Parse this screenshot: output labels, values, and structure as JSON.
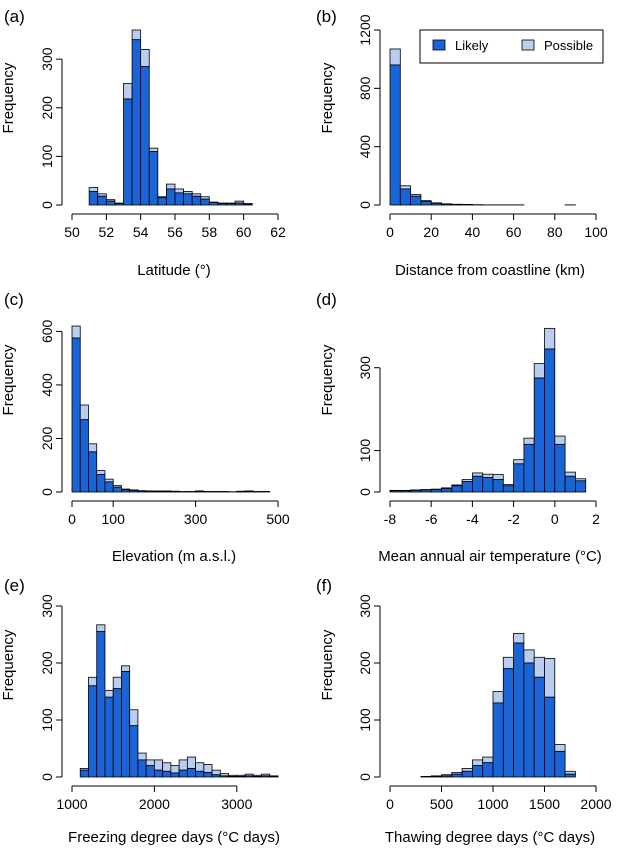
{
  "legend": {
    "labels": [
      "Likely",
      "Possible"
    ],
    "placement": "top-right of panel (b)"
  },
  "colors": {
    "likely": "#1a64d6",
    "possible": "#b9cdee",
    "outline": "#000000"
  },
  "chart_data": [
    {
      "panel": "(a)",
      "type": "bar",
      "stacked": true,
      "xlabel": "Latitude (°)",
      "ylabel": "Frequency",
      "xlim": [
        50,
        62
      ],
      "ylim": [
        0,
        360
      ],
      "xticks": [
        50,
        52,
        54,
        56,
        58,
        60,
        62
      ],
      "yticks": [
        0,
        100,
        200,
        300
      ],
      "bin_width": 0.5,
      "x": [
        51,
        51.5,
        52,
        52.5,
        53,
        53.5,
        54,
        54.5,
        55,
        55.5,
        56,
        56.5,
        57,
        57.5,
        58,
        58.5,
        59,
        59.5,
        60
      ],
      "series": [
        {
          "name": "Likely",
          "values": [
            28,
            18,
            8,
            3,
            218,
            340,
            285,
            110,
            15,
            33,
            25,
            23,
            18,
            12,
            5,
            3,
            3,
            4,
            2
          ]
        },
        {
          "name": "Possible",
          "values": [
            8,
            5,
            3,
            1,
            32,
            20,
            35,
            7,
            2,
            10,
            8,
            5,
            5,
            5,
            1,
            1,
            1,
            4,
            1
          ]
        }
      ]
    },
    {
      "panel": "(b)",
      "type": "bar",
      "stacked": true,
      "xlabel": "Distance from coastline (km)",
      "ylabel": "Frequency",
      "xlim": [
        0,
        100
      ],
      "ylim": [
        0,
        1200
      ],
      "xticks": [
        0,
        20,
        40,
        60,
        80,
        100
      ],
      "yticks": [
        0,
        400,
        800,
        1200
      ],
      "bin_width": 5,
      "x": [
        0,
        5,
        10,
        15,
        20,
        25,
        30,
        35,
        40,
        45,
        50,
        55,
        60,
        65,
        70,
        75,
        80,
        85
      ],
      "series": [
        {
          "name": "Likely",
          "values": [
            960,
            110,
            60,
            25,
            12,
            6,
            4,
            3,
            2,
            1,
            1,
            1,
            1,
            0,
            0,
            0,
            0,
            1
          ]
        },
        {
          "name": "Possible",
          "values": [
            110,
            22,
            12,
            5,
            3,
            2,
            1,
            1,
            0,
            0,
            0,
            0,
            0,
            0,
            0,
            0,
            0,
            0
          ]
        }
      ]
    },
    {
      "panel": "(c)",
      "type": "bar",
      "stacked": true,
      "xlabel": "Elevation (m a.s.l.)",
      "ylabel": "Frequency",
      "xlim": [
        0,
        500
      ],
      "ylim": [
        0,
        650
      ],
      "xticks": [
        0,
        100,
        300,
        500
      ],
      "yticks": [
        0,
        200,
        400,
        600
      ],
      "bin_width": 20,
      "x": [
        0,
        20,
        40,
        60,
        80,
        100,
        120,
        140,
        160,
        180,
        200,
        220,
        240,
        260,
        280,
        300,
        320,
        340,
        360,
        380,
        400,
        420,
        440,
        460
      ],
      "series": [
        {
          "name": "Likely",
          "values": [
            575,
            270,
            150,
            65,
            38,
            18,
            8,
            6,
            4,
            3,
            3,
            3,
            2,
            2,
            2,
            3,
            2,
            2,
            2,
            1,
            2,
            3,
            2,
            2
          ]
        },
        {
          "name": "Possible",
          "values": [
            45,
            55,
            30,
            15,
            10,
            6,
            3,
            2,
            1,
            1,
            1,
            1,
            1,
            0,
            0,
            1,
            0,
            0,
            0,
            0,
            1,
            1,
            0,
            0
          ]
        }
      ]
    },
    {
      "panel": "(d)",
      "type": "bar",
      "stacked": true,
      "xlabel": "Mean annual air temperature (°C)",
      "ylabel": "Frequency",
      "xlim": [
        -8,
        2
      ],
      "ylim": [
        0,
        420
      ],
      "xticks": [
        -8,
        -6,
        -4,
        -2,
        0,
        2
      ],
      "yticks": [
        0,
        100,
        300
      ],
      "bin_width": 0.5,
      "x": [
        -8,
        -7.5,
        -7,
        -6.5,
        -6,
        -5.5,
        -5,
        -4.5,
        -4,
        -3.5,
        -3,
        -2.5,
        -2,
        -1.5,
        -1,
        -0.5,
        0,
        0.5,
        1
      ],
      "series": [
        {
          "name": "Likely",
          "values": [
            3,
            3,
            4,
            5,
            6,
            8,
            15,
            25,
            38,
            35,
            30,
            15,
            68,
            115,
            275,
            345,
            115,
            38,
            27
          ]
        },
        {
          "name": "Possible",
          "values": [
            1,
            1,
            1,
            1,
            1,
            2,
            2,
            5,
            8,
            8,
            12,
            3,
            10,
            15,
            35,
            50,
            20,
            10,
            5
          ]
        }
      ]
    },
    {
      "panel": "(e)",
      "type": "bar",
      "stacked": true,
      "xlabel": "Freezing degree days (°C days)",
      "ylabel": "Frequency",
      "xlim": [
        1000,
        3500
      ],
      "ylim": [
        0,
        300
      ],
      "xticks": [
        1000,
        2000,
        3000
      ],
      "yticks": [
        0,
        100,
        200,
        300
      ],
      "bin_width": 100,
      "x": [
        1100,
        1200,
        1300,
        1400,
        1500,
        1600,
        1700,
        1800,
        1900,
        2000,
        2100,
        2200,
        2300,
        2400,
        2500,
        2600,
        2700,
        2800,
        2900,
        3000,
        3100,
        3200,
        3300,
        3400
      ],
      "series": [
        {
          "name": "Likely",
          "values": [
            12,
            160,
            255,
            140,
            155,
            185,
            90,
            30,
            20,
            12,
            10,
            7,
            12,
            15,
            10,
            8,
            4,
            2,
            1,
            1,
            2,
            1,
            2,
            1
          ]
        },
        {
          "name": "Possible",
          "values": [
            3,
            15,
            12,
            12,
            20,
            10,
            28,
            12,
            10,
            18,
            15,
            13,
            18,
            20,
            15,
            14,
            8,
            4,
            2,
            2,
            3,
            2,
            3,
            1
          ]
        }
      ]
    },
    {
      "panel": "(f)",
      "type": "bar",
      "stacked": true,
      "xlabel": "Thawing degree days (°C days)",
      "ylabel": "Frequency",
      "xlim": [
        0,
        2000
      ],
      "ylim": [
        0,
        300
      ],
      "xticks": [
        0,
        500,
        1000,
        1500,
        2000
      ],
      "yticks": [
        0,
        100,
        200,
        300
      ],
      "bin_width": 100,
      "x": [
        300,
        400,
        500,
        600,
        700,
        800,
        900,
        1000,
        1100,
        1200,
        1300,
        1400,
        1500,
        1600,
        1700
      ],
      "series": [
        {
          "name": "Likely",
          "values": [
            1,
            1,
            2,
            5,
            10,
            20,
            25,
            130,
            190,
            235,
            200,
            175,
            140,
            45,
            5
          ]
        },
        {
          "name": "Possible",
          "values": [
            0,
            1,
            2,
            3,
            5,
            10,
            10,
            20,
            20,
            17,
            23,
            35,
            68,
            12,
            5
          ]
        }
      ]
    }
  ]
}
